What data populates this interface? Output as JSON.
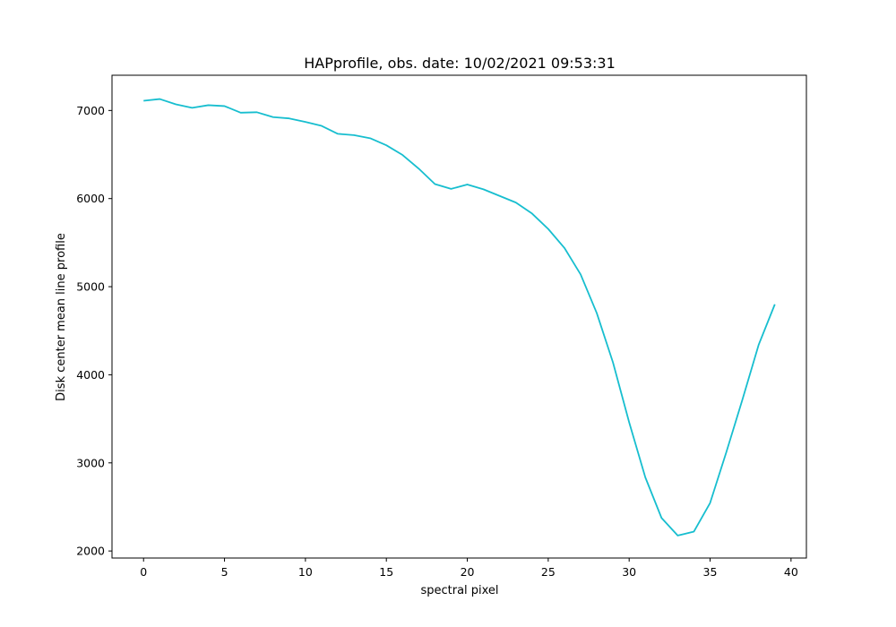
{
  "chart_data": {
    "type": "line",
    "title": "HAPprofile, obs. date: 10/02/2021 09:53:31",
    "xlabel": "spectral pixel",
    "ylabel": "Disk center mean line profile",
    "xlim": [
      -1.95,
      40.95
    ],
    "ylim": [
      1920,
      7400
    ],
    "xticks": [
      0,
      5,
      10,
      15,
      20,
      25,
      30,
      35,
      40
    ],
    "yticks": [
      2000,
      3000,
      4000,
      5000,
      6000,
      7000
    ],
    "grid": false,
    "legend": "none",
    "series": [
      {
        "color": "#17becf",
        "x": [
          0,
          1,
          2,
          3,
          4,
          5,
          6,
          7,
          8,
          9,
          10,
          11,
          12,
          13,
          14,
          15,
          16,
          17,
          18,
          19,
          20,
          21,
          22,
          23,
          24,
          25,
          26,
          27,
          28,
          29,
          30,
          31,
          32,
          33,
          34,
          35,
          36,
          37,
          38,
          39
        ],
        "y": [
          7110,
          7130,
          7070,
          7030,
          7060,
          7050,
          6975,
          6980,
          6925,
          6910,
          6870,
          6825,
          6735,
          6720,
          6685,
          6605,
          6495,
          6340,
          6165,
          6110,
          6160,
          6105,
          6030,
          5955,
          5830,
          5655,
          5440,
          5140,
          4700,
          4140,
          3460,
          2835,
          2375,
          2175,
          2220,
          2545,
          3120,
          3720,
          4340,
          4800
        ]
      }
    ]
  }
}
